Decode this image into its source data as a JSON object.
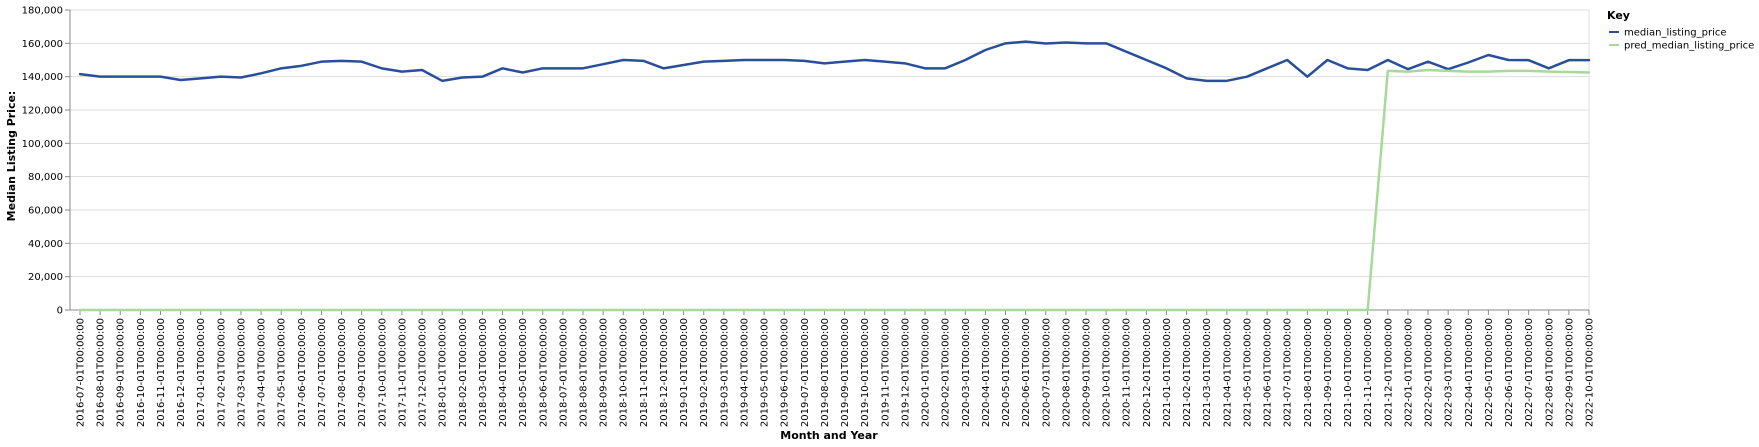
{
  "chart_data": {
    "type": "line",
    "title": "",
    "xlabel": "Month and Year",
    "ylabel": "Median Listing Price:",
    "ylim": [
      0,
      180000
    ],
    "yticks": [
      0,
      20000,
      40000,
      60000,
      80000,
      100000,
      120000,
      140000,
      160000,
      180000
    ],
    "ytick_labels": [
      "0",
      "20,000",
      "40,000",
      "60,000",
      "80,000",
      "100,000",
      "120,000",
      "140,000",
      "160,000",
      "180,000"
    ],
    "grid": true,
    "legend": {
      "title": "Key",
      "placement": "right"
    },
    "x": [
      "2016-07-01T00:00:00",
      "2016-08-01T00:00:00",
      "2016-09-01T00:00:00",
      "2016-10-01T00:00:00",
      "2016-11-01T00:00:00",
      "2016-12-01T00:00:00",
      "2017-01-01T00:00:00",
      "2017-02-01T00:00:00",
      "2017-03-01T00:00:00",
      "2017-04-01T00:00:00",
      "2017-05-01T00:00:00",
      "2017-06-01T00:00:00",
      "2017-07-01T00:00:00",
      "2017-08-01T00:00:00",
      "2017-09-01T00:00:00",
      "2017-10-01T00:00:00",
      "2017-11-01T00:00:00",
      "2017-12-01T00:00:00",
      "2018-01-01T00:00:00",
      "2018-02-01T00:00:00",
      "2018-03-01T00:00:00",
      "2018-04-01T00:00:00",
      "2018-05-01T00:00:00",
      "2018-06-01T00:00:00",
      "2018-07-01T00:00:00",
      "2018-08-01T00:00:00",
      "2018-09-01T00:00:00",
      "2018-10-01T00:00:00",
      "2018-11-01T00:00:00",
      "2018-12-01T00:00:00",
      "2019-01-01T00:00:00",
      "2019-02-01T00:00:00",
      "2019-03-01T00:00:00",
      "2019-04-01T00:00:00",
      "2019-05-01T00:00:00",
      "2019-06-01T00:00:00",
      "2019-07-01T00:00:00",
      "2019-08-01T00:00:00",
      "2019-09-01T00:00:00",
      "2019-10-01T00:00:00",
      "2019-11-01T00:00:00",
      "2019-12-01T00:00:00",
      "2020-01-01T00:00:00",
      "2020-02-01T00:00:00",
      "2020-03-01T00:00:00",
      "2020-04-01T00:00:00",
      "2020-05-01T00:00:00",
      "2020-06-01T00:00:00",
      "2020-07-01T00:00:00",
      "2020-08-01T00:00:00",
      "2020-09-01T00:00:00",
      "2020-10-01T00:00:00",
      "2020-11-01T00:00:00",
      "2020-12-01T00:00:00",
      "2021-01-01T00:00:00",
      "2021-02-01T00:00:00",
      "2021-03-01T00:00:00",
      "2021-04-01T00:00:00",
      "2021-05-01T00:00:00",
      "2021-06-01T00:00:00",
      "2021-07-01T00:00:00",
      "2021-08-01T00:00:00",
      "2021-09-01T00:00:00",
      "2021-10-01T00:00:00",
      "2021-11-01T00:00:00",
      "2021-12-01T00:00:00",
      "2022-01-01T00:00:00",
      "2022-02-01T00:00:00",
      "2022-03-01T00:00:00",
      "2022-04-01T00:00:00",
      "2022-05-01T00:00:00",
      "2022-06-01T00:00:00",
      "2022-07-01T00:00:00",
      "2022-08-01T00:00:00",
      "2022-09-01T00:00:00",
      "2022-10-01T00:00:00"
    ],
    "series": [
      {
        "name": "median_listing_price",
        "color": "#2a4f9a",
        "values": [
          141500,
          140000,
          140000,
          140000,
          140000,
          138000,
          139000,
          140000,
          139500,
          142000,
          145000,
          146500,
          149000,
          149500,
          149000,
          145000,
          143000,
          144000,
          137500,
          139500,
          140000,
          145000,
          142500,
          145000,
          145000,
          145000,
          147500,
          150000,
          149500,
          145000,
          147000,
          149000,
          149500,
          150000,
          150000,
          150000,
          149500,
          148000,
          149000,
          150000,
          149000,
          148000,
          145000,
          145000,
          150000,
          156000,
          160000,
          161000,
          159900,
          160500,
          160000,
          160000,
          155000,
          150000,
          145000,
          139000,
          137500,
          137500,
          140000,
          145000,
          150000,
          140000,
          150000,
          145000,
          144000,
          150000,
          144500,
          149000,
          144500,
          148500,
          153000,
          150000,
          149900,
          145000,
          149900,
          149900
        ]
      },
      {
        "name": "pred_median_listing_price",
        "color": "#a6d99a",
        "values": [
          0,
          0,
          0,
          0,
          0,
          0,
          0,
          0,
          0,
          0,
          0,
          0,
          0,
          0,
          0,
          0,
          0,
          0,
          0,
          0,
          0,
          0,
          0,
          0,
          0,
          0,
          0,
          0,
          0,
          0,
          0,
          0,
          0,
          0,
          0,
          0,
          0,
          0,
          0,
          0,
          0,
          0,
          0,
          0,
          0,
          0,
          0,
          0,
          0,
          0,
          0,
          0,
          0,
          0,
          0,
          0,
          0,
          0,
          0,
          0,
          0,
          0,
          0,
          0,
          0,
          143500,
          143000,
          144000,
          143500,
          143000,
          143000,
          143500,
          143500,
          143000,
          142800,
          142500
        ]
      }
    ]
  }
}
